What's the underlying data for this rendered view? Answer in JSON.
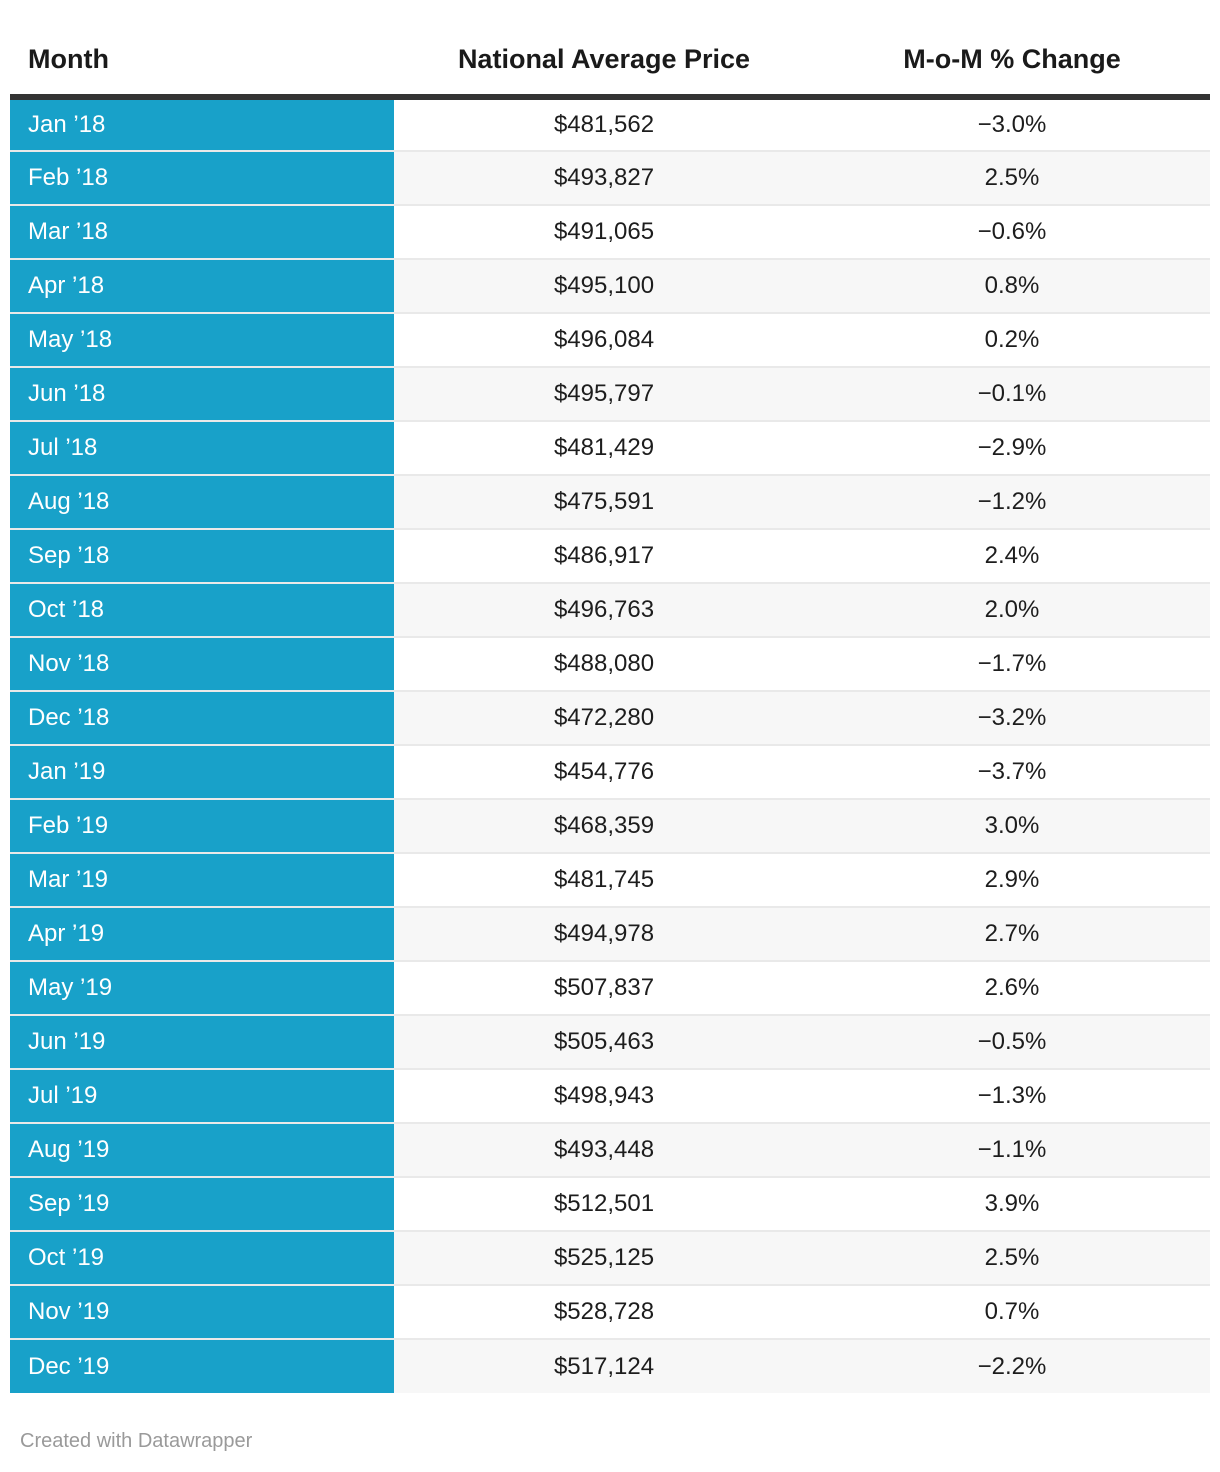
{
  "table": {
    "columns": [
      {
        "label": "Month",
        "align": "left"
      },
      {
        "label": "National Average Price",
        "align": "center"
      },
      {
        "label": "M-o-M % Change",
        "align": "center"
      }
    ],
    "rows": [
      {
        "month": "Jan ’18",
        "price": "$481,562",
        "change": "−3.0%"
      },
      {
        "month": "Feb ’18",
        "price": "$493,827",
        "change": "2.5%"
      },
      {
        "month": "Mar ’18",
        "price": "$491,065",
        "change": "−0.6%"
      },
      {
        "month": "Apr ’18",
        "price": "$495,100",
        "change": "0.8%"
      },
      {
        "month": "May ’18",
        "price": "$496,084",
        "change": "0.2%"
      },
      {
        "month": "Jun ’18",
        "price": "$495,797",
        "change": "−0.1%"
      },
      {
        "month": "Jul ’18",
        "price": "$481,429",
        "change": "−2.9%"
      },
      {
        "month": "Aug ’18",
        "price": "$475,591",
        "change": "−1.2%"
      },
      {
        "month": "Sep ’18",
        "price": "$486,917",
        "change": "2.4%"
      },
      {
        "month": "Oct ’18",
        "price": "$496,763",
        "change": "2.0%"
      },
      {
        "month": "Nov ’18",
        "price": "$488,080",
        "change": "−1.7%"
      },
      {
        "month": "Dec ’18",
        "price": "$472,280",
        "change": "−3.2%"
      },
      {
        "month": "Jan ’19",
        "price": "$454,776",
        "change": "−3.7%"
      },
      {
        "month": "Feb ’19",
        "price": "$468,359",
        "change": "3.0%"
      },
      {
        "month": "Mar ’19",
        "price": "$481,745",
        "change": "2.9%"
      },
      {
        "month": "Apr ’19",
        "price": "$494,978",
        "change": "2.7%"
      },
      {
        "month": "May ’19",
        "price": "$507,837",
        "change": "2.6%"
      },
      {
        "month": "Jun ’19",
        "price": "$505,463",
        "change": "−0.5%"
      },
      {
        "month": "Jul ’19",
        "price": "$498,943",
        "change": "−1.3%"
      },
      {
        "month": "Aug ’19",
        "price": "$493,448",
        "change": "−1.1%"
      },
      {
        "month": "Sep ’19",
        "price": "$512,501",
        "change": "3.9%"
      },
      {
        "month": "Oct ’19",
        "price": "$525,125",
        "change": "2.5%"
      },
      {
        "month": "Nov ’19",
        "price": "$528,728",
        "change": "0.7%"
      },
      {
        "month": "Dec ’19",
        "price": "$517,124",
        "change": "−2.2%"
      }
    ]
  },
  "footer": {
    "credit": "Created with Datawrapper"
  },
  "colors": {
    "month_column_bg": "#18a1c9",
    "month_text": "#ffffff",
    "header_text": "#1a1a1a",
    "header_border": "#333333",
    "row_alt_bg": "#f7f7f7",
    "row_separator": "#e9e9e9",
    "value_text": "#1d1d1d",
    "credit_text": "#9a9a9a"
  },
  "chart_data": {
    "type": "table",
    "title": "",
    "columns": [
      "Month",
      "National Average Price",
      "M-o-M % Change"
    ],
    "months": [
      "Jan '18",
      "Feb '18",
      "Mar '18",
      "Apr '18",
      "May '18",
      "Jun '18",
      "Jul '18",
      "Aug '18",
      "Sep '18",
      "Oct '18",
      "Nov '18",
      "Dec '18",
      "Jan '19",
      "Feb '19",
      "Mar '19",
      "Apr '19",
      "May '19",
      "Jun '19",
      "Jul '19",
      "Aug '19",
      "Sep '19",
      "Oct '19",
      "Nov '19",
      "Dec '19"
    ],
    "series": [
      {
        "name": "National Average Price",
        "unit": "USD",
        "values": [
          481562,
          493827,
          491065,
          495100,
          496084,
          495797,
          481429,
          475591,
          486917,
          496763,
          488080,
          472280,
          454776,
          468359,
          481745,
          494978,
          507837,
          505463,
          498943,
          493448,
          512501,
          525125,
          528728,
          517124
        ]
      },
      {
        "name": "M-o-M % Change",
        "unit": "%",
        "values": [
          -3.0,
          2.5,
          -0.6,
          0.8,
          0.2,
          -0.1,
          -2.9,
          -1.2,
          2.4,
          2.0,
          -1.7,
          -3.2,
          -3.7,
          3.0,
          2.9,
          2.7,
          2.6,
          -0.5,
          -1.3,
          -1.1,
          3.9,
          2.5,
          0.7,
          -2.2
        ]
      }
    ],
    "layout_hints": {
      "first_column_highlight": "#18a1c9",
      "alternating_rows": true,
      "credit": "Created with Datawrapper"
    }
  }
}
